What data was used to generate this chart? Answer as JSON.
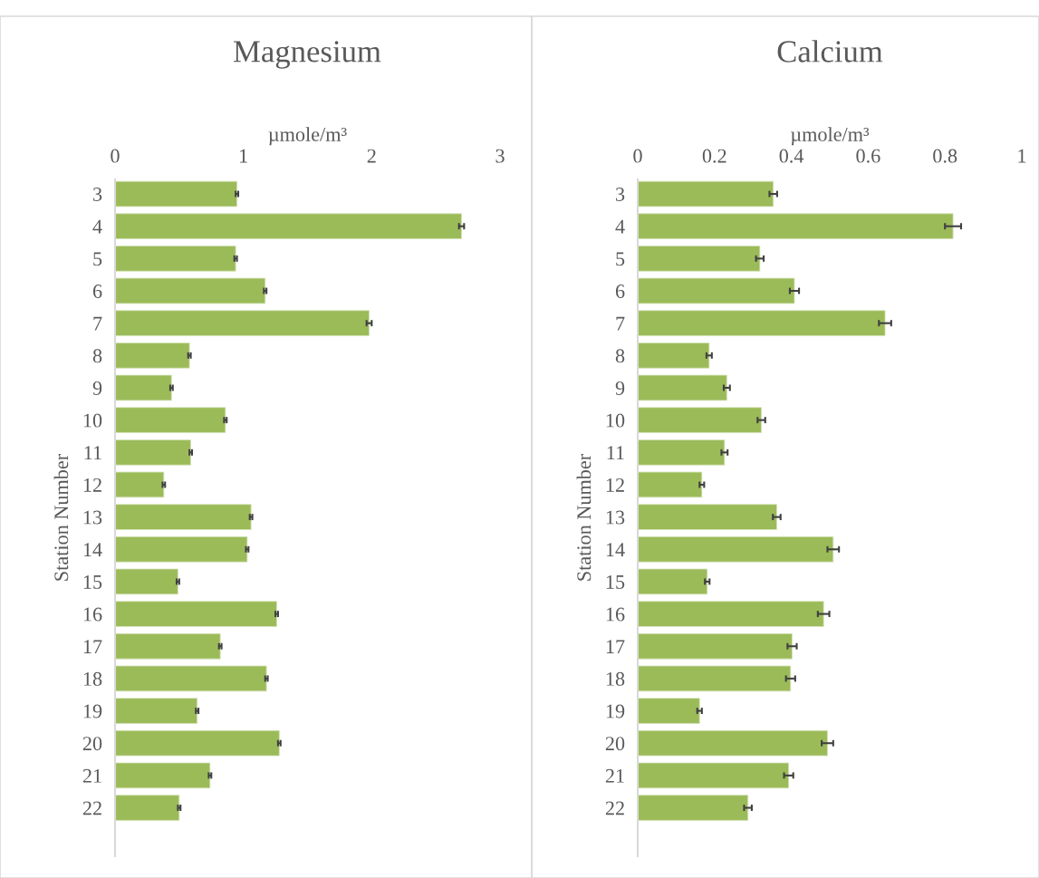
{
  "chart_data": [
    {
      "type": "bar",
      "orientation": "horizontal",
      "title": "Magnesium",
      "xlabel": "µmole/m³",
      "ylabel": "Station Number",
      "color": "#9bbb59",
      "categories": [
        "3",
        "4",
        "5",
        "6",
        "7",
        "8",
        "9",
        "10",
        "11",
        "12",
        "13",
        "14",
        "15",
        "16",
        "17",
        "18",
        "19",
        "20",
        "21",
        "22"
      ],
      "values": [
        0.95,
        2.7,
        0.94,
        1.17,
        1.98,
        0.58,
        0.44,
        0.86,
        0.59,
        0.38,
        1.06,
        1.03,
        0.49,
        1.26,
        0.82,
        1.18,
        0.64,
        1.28,
        0.74,
        0.5
      ],
      "errors": [
        0.01,
        0.02,
        0.01,
        0.01,
        0.02,
        0.01,
        0.01,
        0.01,
        0.01,
        0.01,
        0.01,
        0.01,
        0.01,
        0.01,
        0.01,
        0.01,
        0.01,
        0.01,
        0.01,
        0.01
      ],
      "xlim": [
        0,
        3
      ],
      "xticks": [
        0,
        1,
        2,
        3
      ]
    },
    {
      "type": "bar",
      "orientation": "horizontal",
      "title": "Calcium",
      "xlabel": "µmole/m³",
      "ylabel": "Station Number",
      "color": "#9bbb59",
      "categories": [
        "3",
        "4",
        "5",
        "6",
        "7",
        "8",
        "9",
        "10",
        "11",
        "12",
        "13",
        "14",
        "15",
        "16",
        "17",
        "18",
        "19",
        "20",
        "21",
        "22"
      ],
      "values": [
        0.353,
        0.821,
        0.318,
        0.408,
        0.644,
        0.186,
        0.232,
        0.322,
        0.226,
        0.167,
        0.362,
        0.509,
        0.181,
        0.484,
        0.402,
        0.398,
        0.161,
        0.494,
        0.393,
        0.287
      ],
      "errors": [
        0.01,
        0.021,
        0.01,
        0.012,
        0.016,
        0.007,
        0.008,
        0.01,
        0.008,
        0.006,
        0.01,
        0.015,
        0.006,
        0.015,
        0.012,
        0.012,
        0.006,
        0.015,
        0.012,
        0.01
      ],
      "xlim": [
        0,
        1
      ],
      "xticks": [
        0,
        0.2,
        0.4,
        0.6,
        0.8,
        1
      ]
    }
  ]
}
